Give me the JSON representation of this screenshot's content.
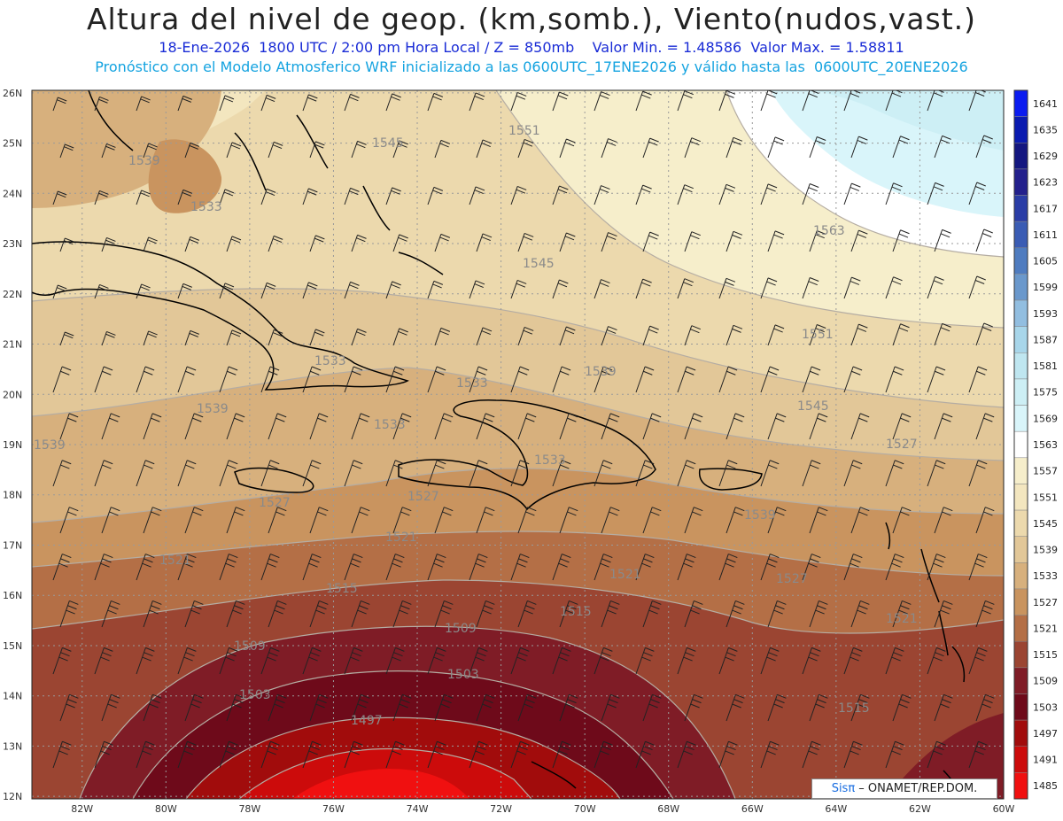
{
  "header": {
    "title": "Altura del nivel de geop. (km,somb.), Viento(nudos,vast.)",
    "line1": "18-Ene-2026  1800 UTC / 2:00 pm Hora Local / Z = 850mb    Valor Min. = 1.48586  Valor Max. = 1.58811",
    "line2": "Pronóstico con el Modelo Atmosferico WRF inicializado a las 0600UTC_17ENE2026 y válido hasta las  0600UTC_20ENE2026"
  },
  "axes": {
    "lat_labels": [
      "26N",
      "25N",
      "24N",
      "23N",
      "22N",
      "21N",
      "20N",
      "19N",
      "18N",
      "17N",
      "16N",
      "15N",
      "14N",
      "13N",
      "12N"
    ],
    "lon_labels": [
      "82W",
      "80W",
      "78W",
      "76W",
      "74W",
      "72W",
      "70W",
      "68W",
      "66W",
      "64W",
      "62W",
      "60W"
    ]
  },
  "colorbar": {
    "levels": [
      "1641",
      "1635",
      "1629",
      "1623",
      "1617",
      "1611",
      "1605",
      "1599",
      "1593",
      "1587",
      "1581",
      "1575",
      "1569",
      "1563",
      "1557",
      "1551",
      "1545",
      "1539",
      "1533",
      "1527",
      "1521",
      "1515",
      "1509",
      "1503",
      "1497",
      "1491",
      "1485"
    ],
    "colors": [
      "#0b1cf0",
      "#0a1bb0",
      "#141780",
      "#23208c",
      "#2a3da6",
      "#3a5cb4",
      "#4f7cc0",
      "#6a98cc",
      "#92bee0",
      "#a8d6ea",
      "#bfe6f0",
      "#cdeff5",
      "#d9f5fa",
      "#ffffff",
      "#f6eecb",
      "#f3e6bf",
      "#ecd9ad",
      "#e2c798",
      "#d7b07d",
      "#c9945f",
      "#b46f46",
      "#9b4532",
      "#7f1c26",
      "#6e0a1a",
      "#a10c0c",
      "#cc0b0b",
      "#f01010"
    ]
  },
  "contour_labels": [
    {
      "text": "1545"
    },
    {
      "text": "1551"
    },
    {
      "text": "1539"
    },
    {
      "text": "1533"
    },
    {
      "text": "1563"
    },
    {
      "text": "1545"
    },
    {
      "text": "1551"
    },
    {
      "text": "1539"
    },
    {
      "text": "1545"
    },
    {
      "text": "1533"
    },
    {
      "text": "1539"
    },
    {
      "text": "1539"
    },
    {
      "text": "1533"
    },
    {
      "text": "1527"
    },
    {
      "text": "1527"
    },
    {
      "text": "1533"
    },
    {
      "text": "1539"
    },
    {
      "text": "1521"
    },
    {
      "text": "1521"
    },
    {
      "text": "1521"
    },
    {
      "text": "1527"
    },
    {
      "text": "1515"
    },
    {
      "text": "1515"
    },
    {
      "text": "1521"
    },
    {
      "text": "1509"
    },
    {
      "text": "1509"
    },
    {
      "text": "1503"
    },
    {
      "text": "1503"
    },
    {
      "text": "1497"
    },
    {
      "text": "1515"
    },
    {
      "text": "1533"
    },
    {
      "text": "1527"
    }
  ],
  "credit": {
    "brand": "Sisπ",
    "org": " – ONAMET/REP.DOM."
  }
}
